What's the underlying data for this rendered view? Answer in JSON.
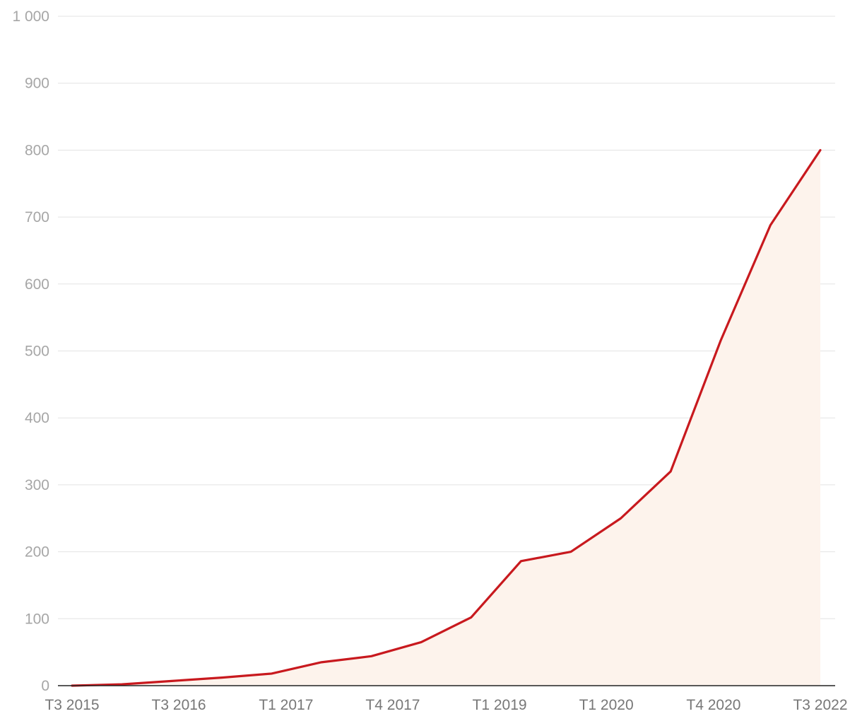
{
  "chart_data": {
    "type": "area",
    "title": "",
    "xlabel": "",
    "ylabel": "",
    "ylim": [
      0,
      1000
    ],
    "y_ticks": [
      0,
      100,
      200,
      300,
      400,
      500,
      600,
      700,
      800,
      900,
      1000
    ],
    "y_tick_labels": [
      "0",
      "100",
      "200",
      "300",
      "400",
      "500",
      "600",
      "700",
      "800",
      "900",
      "1 000"
    ],
    "x_tick_labels": [
      "T3 2015",
      "T3 2016",
      "T1 2017",
      "T4 2017",
      "T1 2019",
      "T1 2020",
      "T4 2020",
      "T3 2022"
    ],
    "x_tick_indices": [
      0,
      2.14,
      4.29,
      6.43,
      8.57,
      10.71,
      12.86,
      15
    ],
    "grid": true,
    "legend": "none",
    "colors": {
      "line": "#c8191e",
      "fill": "#fdf3ec",
      "grid": "#e3e3e3",
      "baseline": "#222222"
    },
    "series": [
      {
        "values": [
          0,
          2,
          7,
          12,
          18,
          35,
          44,
          65,
          102,
          186,
          200,
          250,
          320,
          515,
          688,
          800
        ]
      }
    ]
  }
}
